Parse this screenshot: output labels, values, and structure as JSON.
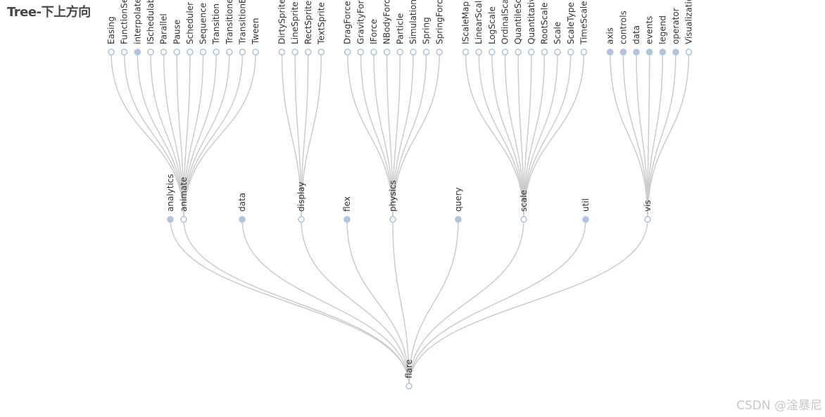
{
  "title": "Tree-下上方向",
  "watermark": "CSDN @淦暴尼",
  "colors": {
    "link": "#cccccc",
    "node_collapsed": "#b0c4de",
    "node_expanded": "#ffffff",
    "node_border": "#b0c4de",
    "label": "#333333",
    "title": "#464646",
    "watermark": "#c8c8c8"
  },
  "chart_data": {
    "type": "tree",
    "orient": "bottom-to-top",
    "root": {
      "name": "flare",
      "collapsed": false,
      "children": [
        {
          "name": "analytics",
          "collapsed": true,
          "children": []
        },
        {
          "name": "animate",
          "collapsed": false,
          "children": [
            {
              "name": "Easing",
              "collapsed": false
            },
            {
              "name": "FunctionSequence",
              "collapsed": false
            },
            {
              "name": "interpolate",
              "collapsed": true
            },
            {
              "name": "ISchedulable",
              "collapsed": false
            },
            {
              "name": "Parallel",
              "collapsed": false
            },
            {
              "name": "Pause",
              "collapsed": false
            },
            {
              "name": "Scheduler",
              "collapsed": false
            },
            {
              "name": "Sequence",
              "collapsed": false
            },
            {
              "name": "Transition",
              "collapsed": false
            },
            {
              "name": "Transitioner",
              "collapsed": false
            },
            {
              "name": "TransitionEvent",
              "collapsed": false
            },
            {
              "name": "Tween",
              "collapsed": false
            }
          ]
        },
        {
          "name": "data",
          "collapsed": true,
          "children": []
        },
        {
          "name": "display",
          "collapsed": false,
          "children": [
            {
              "name": "DirtySprite",
              "collapsed": false
            },
            {
              "name": "LineSprite",
              "collapsed": false
            },
            {
              "name": "RectSprite",
              "collapsed": false
            },
            {
              "name": "TextSprite",
              "collapsed": false
            }
          ]
        },
        {
          "name": "flex",
          "collapsed": true,
          "children": []
        },
        {
          "name": "physics",
          "collapsed": false,
          "children": [
            {
              "name": "DragForce",
              "collapsed": false
            },
            {
              "name": "GravityForce",
              "collapsed": false
            },
            {
              "name": "IForce",
              "collapsed": false
            },
            {
              "name": "NBodyForce",
              "collapsed": false
            },
            {
              "name": "Particle",
              "collapsed": false
            },
            {
              "name": "Simulation",
              "collapsed": false
            },
            {
              "name": "Spring",
              "collapsed": false
            },
            {
              "name": "SpringForce",
              "collapsed": false
            }
          ]
        },
        {
          "name": "query",
          "collapsed": true,
          "children": []
        },
        {
          "name": "scale",
          "collapsed": false,
          "children": [
            {
              "name": "IScaleMap",
              "collapsed": false
            },
            {
              "name": "LinearScale",
              "collapsed": false
            },
            {
              "name": "LogScale",
              "collapsed": false
            },
            {
              "name": "OrdinalScale",
              "collapsed": false
            },
            {
              "name": "QuantileScale",
              "collapsed": false
            },
            {
              "name": "QuantitativeScale",
              "collapsed": false
            },
            {
              "name": "RootScale",
              "collapsed": false
            },
            {
              "name": "Scale",
              "collapsed": false
            },
            {
              "name": "ScaleType",
              "collapsed": false
            },
            {
              "name": "TimeScale",
              "collapsed": false
            }
          ]
        },
        {
          "name": "util",
          "collapsed": true,
          "children": []
        },
        {
          "name": "vis",
          "collapsed": false,
          "children": [
            {
              "name": "axis",
              "collapsed": true
            },
            {
              "name": "controls",
              "collapsed": true
            },
            {
              "name": "data",
              "collapsed": true
            },
            {
              "name": "events",
              "collapsed": true
            },
            {
              "name": "legend",
              "collapsed": true
            },
            {
              "name": "operator",
              "collapsed": true
            },
            {
              "name": "Visualization",
              "collapsed": false
            }
          ]
        }
      ]
    }
  }
}
